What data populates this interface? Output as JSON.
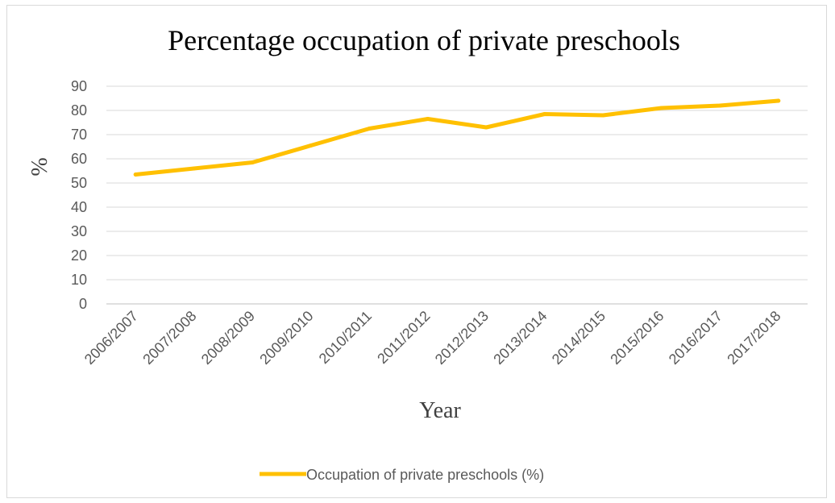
{
  "chart_data": {
    "type": "line",
    "title": "Percentage occupation of private preschools",
    "xlabel": "Year",
    "ylabel": "%",
    "ylim": [
      0,
      90
    ],
    "yticks": [
      "0",
      "10",
      "20",
      "30",
      "40",
      "50",
      "60",
      "70",
      "80",
      "90"
    ],
    "categories": [
      "2006/2007",
      "2007/2008",
      "2008/2009",
      "2009/2010",
      "2010/2011",
      "2011/2012",
      "2012/2013",
      "2013/2014",
      "2014/2015",
      "2015/2016",
      "2016/2017",
      "2017/2018"
    ],
    "series": [
      {
        "name": "Occupation of private preschools (%)",
        "color": "#FFC000",
        "values": [
          53.5,
          56,
          58.5,
          65.5,
          72.5,
          76.5,
          73,
          78.5,
          78,
          81,
          82,
          84
        ]
      }
    ],
    "grid": true,
    "legend": "bottom"
  }
}
